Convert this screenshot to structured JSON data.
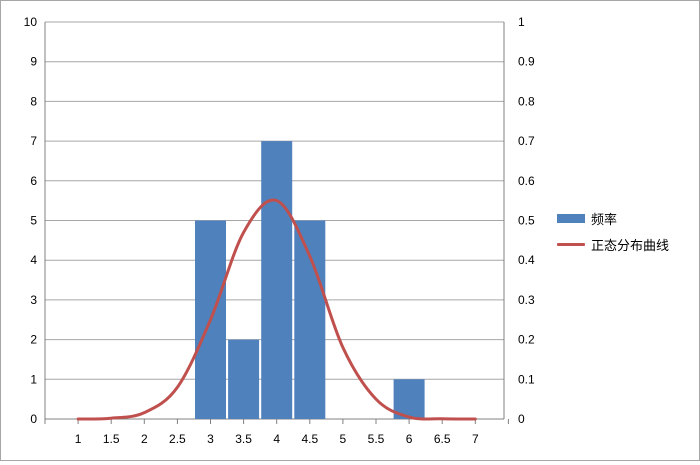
{
  "chart_data": {
    "type": "bar",
    "x_ticks": [
      "1",
      "1.5",
      "2",
      "2.5",
      "3",
      "3.5",
      "4",
      "4.5",
      "5",
      "5.5",
      "6",
      "6.5",
      "7"
    ],
    "bars": {
      "name": "频率",
      "color": "#4f81bd",
      "x": [
        3,
        3.5,
        4,
        4.5,
        6
      ],
      "values": [
        5,
        2,
        7,
        5,
        1
      ]
    },
    "curve": {
      "name": "正态分布曲线",
      "color": "#c0504d",
      "x": [
        1,
        1.5,
        2,
        2.5,
        3,
        3.5,
        4,
        4.5,
        5,
        5.5,
        6,
        6.5,
        7
      ],
      "values": [
        0,
        0.002,
        0.016,
        0.08,
        0.25,
        0.47,
        0.55,
        0.41,
        0.18,
        0.05,
        0.005,
        0.0005,
        0
      ]
    },
    "y_left": {
      "min": 0,
      "max": 10,
      "ticks": [
        "0",
        "1",
        "2",
        "3",
        "4",
        "5",
        "6",
        "7",
        "8",
        "9",
        "10"
      ]
    },
    "y_right": {
      "min": 0,
      "max": 1,
      "ticks": [
        "0",
        "0.1",
        "0.2",
        "0.3",
        "0.4",
        "0.5",
        "0.6",
        "0.7",
        "0.8",
        "0.9",
        "1"
      ]
    },
    "grid": true,
    "legend_position": "right"
  }
}
